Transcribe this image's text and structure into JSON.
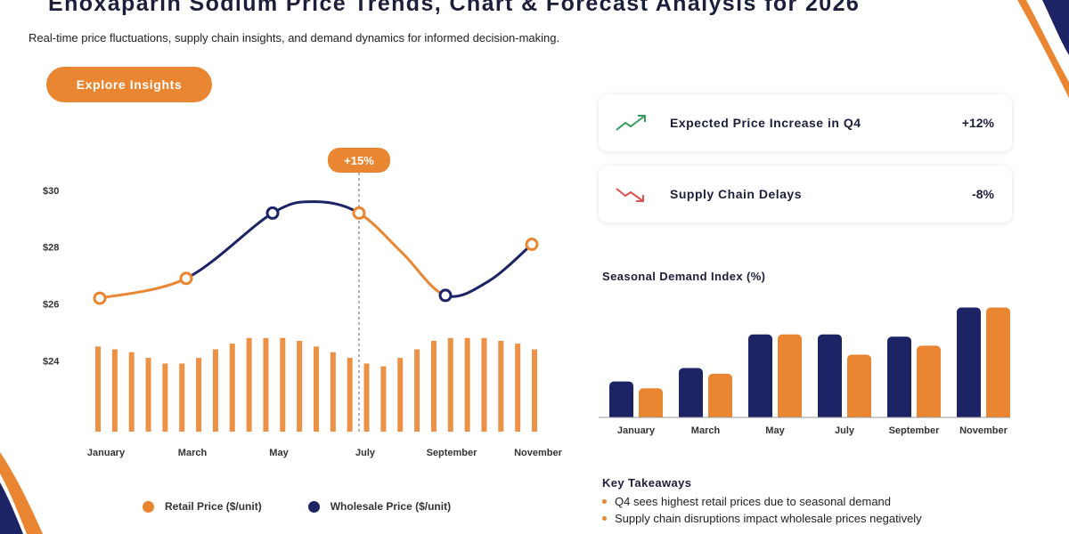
{
  "header": {
    "title": "Enoxaparin Sodium Price Trends, Chart & Forecast Analysis for 2026",
    "subtitle": "Real-time price fluctuations, supply chain insights, and demand dynamics for informed decision-making.",
    "cta_label": "Explore Insights"
  },
  "colors": {
    "orange": "#ea8632",
    "navy": "#1c2466",
    "green": "#3a9b5e",
    "red": "#d9534f"
  },
  "chart_data": [
    {
      "type": "line",
      "title": "",
      "y_tick_labels": [
        "$30",
        "$28",
        "$26",
        "$24"
      ],
      "y_ticks": [
        30,
        28,
        26,
        24
      ],
      "ylim": [
        21.5,
        31
      ],
      "x_labels": [
        "January",
        "March",
        "May",
        "July",
        "September",
        "November"
      ],
      "series": [
        {
          "name": "Retail Price ($/unit)",
          "color": "#ea8632",
          "points": [
            {
              "x": 0,
              "y": 26.2
            },
            {
              "x": 2,
              "y": 26.9
            },
            {
              "x": 6,
              "y": 29.2
            },
            {
              "x": 10,
              "y": 28.1
            }
          ]
        },
        {
          "name": "Wholesale Price ($/unit)",
          "color": "#1c2466",
          "points": [
            {
              "x": 4,
              "y": 29.2
            },
            {
              "x": 8,
              "y": 26.3
            }
          ]
        }
      ],
      "line_values": [
        {
          "x": 0,
          "y": 26.2
        },
        {
          "x": 2,
          "y": 26.9
        },
        {
          "x": 4,
          "y": 29.2
        },
        {
          "x": 5,
          "y": 29.6
        },
        {
          "x": 6,
          "y": 29.2
        },
        {
          "x": 7,
          "y": 27.8
        },
        {
          "x": 8,
          "y": 26.3
        },
        {
          "x": 9,
          "y": 26.8
        },
        {
          "x": 10,
          "y": 28.1
        }
      ],
      "line_segment_colors": [
        "#ea8632",
        "#1c2466",
        "#1c2466",
        "#1c2466",
        "#ea8632",
        "#ea8632",
        "#1c2466",
        "#1c2466"
      ],
      "bar_values": [
        24.5,
        24.4,
        24.3,
        24.1,
        23.9,
        23.9,
        24.1,
        24.4,
        24.6,
        24.8,
        24.8,
        24.8,
        24.7,
        24.5,
        24.3,
        24.1,
        23.9,
        23.8,
        24.1,
        24.4,
        24.7,
        24.8,
        24.8,
        24.8,
        24.7,
        24.6,
        24.4
      ],
      "bar_baseline": 21.5,
      "annotation": {
        "label": "+15%",
        "x": 6
      },
      "legend": [
        "Retail Price ($/unit)",
        "Wholesale Price ($/unit)"
      ]
    },
    {
      "type": "bar",
      "title": "Seasonal Demand Index (%)",
      "categories": [
        "January",
        "March",
        "May",
        "July",
        "September",
        "November"
      ],
      "series": [
        {
          "color": "#1c2466",
          "values": [
            32,
            44,
            74,
            74,
            72,
            98
          ]
        },
        {
          "color": "#ea8632",
          "values": [
            26,
            39,
            74,
            56,
            64,
            98
          ]
        }
      ],
      "ylim": [
        0,
        100
      ]
    }
  ],
  "cards": [
    {
      "label": "Expected Price Increase in Q4",
      "value": "+12%",
      "icon": "trend-up-icon"
    },
    {
      "label": "Supply Chain Delays",
      "value": "-8%",
      "icon": "trend-down-icon"
    }
  ],
  "takeaways": {
    "title": "Key Takeaways",
    "items": [
      "Q4 sees highest retail prices due to seasonal demand",
      "Supply chain disruptions impact wholesale prices negatively"
    ]
  }
}
